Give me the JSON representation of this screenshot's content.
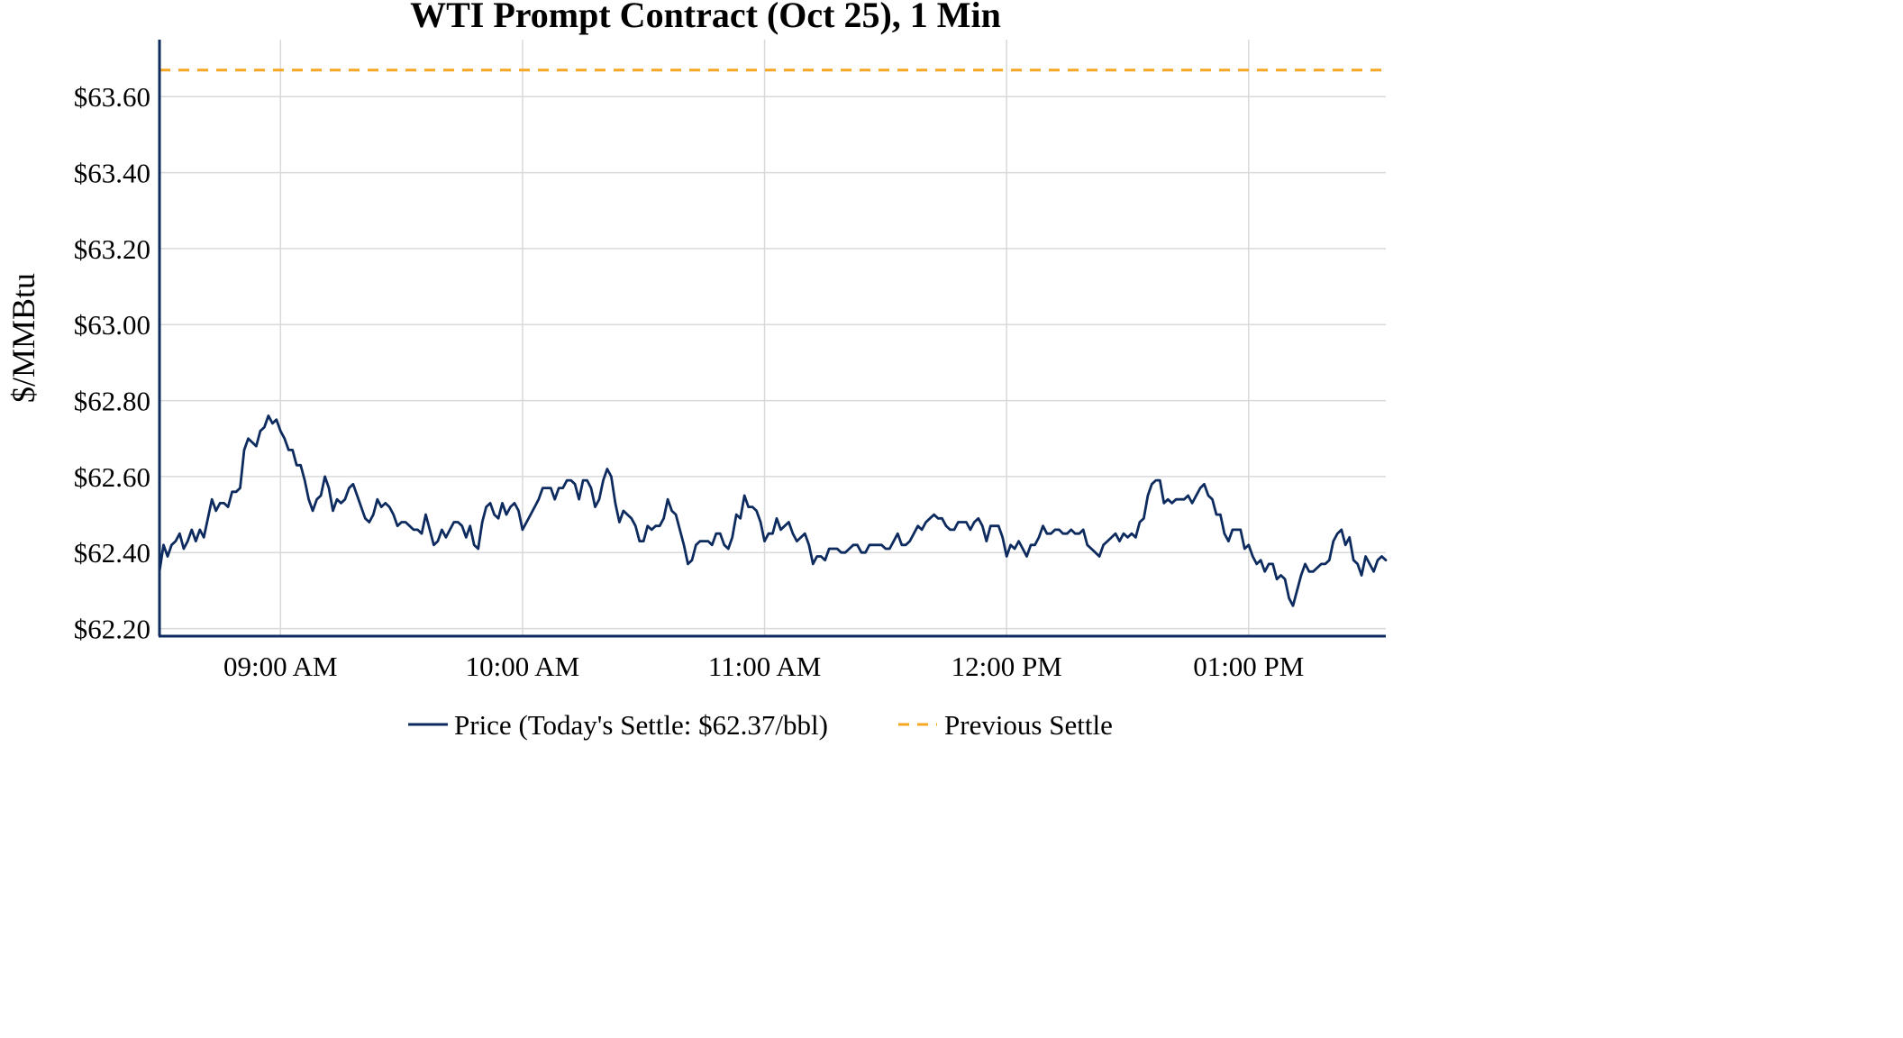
{
  "chart_data": {
    "type": "line",
    "title": "WTI Prompt Contract (Oct 25), 1 Min",
    "xlabel": "",
    "ylabel": "$/MMBtu",
    "x_start_minute": 510,
    "x_end_minute": 814,
    "xlim": [
      "08:30",
      "13:34"
    ],
    "ylim": [
      62.18,
      63.75
    ],
    "grid": true,
    "legend_position": "bottom-center",
    "y_ticks": [
      {
        "value": 62.2,
        "label": "$62.20"
      },
      {
        "value": 62.4,
        "label": "$62.40"
      },
      {
        "value": 62.6,
        "label": "$62.60"
      },
      {
        "value": 62.8,
        "label": "$62.80"
      },
      {
        "value": 63.0,
        "label": "$63.00"
      },
      {
        "value": 63.2,
        "label": "$63.20"
      },
      {
        "value": 63.4,
        "label": "$63.40"
      },
      {
        "value": 63.6,
        "label": "$63.60"
      }
    ],
    "x_ticks": [
      {
        "minute": 540,
        "label": "09:00 AM"
      },
      {
        "minute": 600,
        "label": "10:00 AM"
      },
      {
        "minute": 660,
        "label": "11:00 AM"
      },
      {
        "minute": 720,
        "label": "12:00 PM"
      },
      {
        "minute": 780,
        "label": "01:00 PM"
      }
    ],
    "series": [
      {
        "name": "Price (Today's Settle: $62.37/bbl)",
        "color": "#0d2b5e",
        "style": "solid",
        "sampling": "1 min",
        "values": [
          62.35,
          62.42,
          62.39,
          62.42,
          62.43,
          62.45,
          62.41,
          62.43,
          62.46,
          62.43,
          62.46,
          62.44,
          62.49,
          62.54,
          62.51,
          62.53,
          62.53,
          62.52,
          62.56,
          62.56,
          62.57,
          62.67,
          62.7,
          62.69,
          62.68,
          62.72,
          62.73,
          62.76,
          62.74,
          62.75,
          62.72,
          62.7,
          62.67,
          62.67,
          62.63,
          62.63,
          62.59,
          62.54,
          62.51,
          62.54,
          62.55,
          62.6,
          62.57,
          62.51,
          62.54,
          62.53,
          62.54,
          62.57,
          62.58,
          62.55,
          62.52,
          62.49,
          62.48,
          62.5,
          62.54,
          62.52,
          62.53,
          62.52,
          62.5,
          62.47,
          62.48,
          62.48,
          62.47,
          62.46,
          62.46,
          62.45,
          62.5,
          62.46,
          62.42,
          62.43,
          62.46,
          62.44,
          62.46,
          62.48,
          62.48,
          62.47,
          62.44,
          62.47,
          62.42,
          62.41,
          62.48,
          62.52,
          62.53,
          62.5,
          62.49,
          62.53,
          62.5,
          62.52,
          62.53,
          62.51,
          62.46,
          62.48,
          62.5,
          62.52,
          62.54,
          62.57,
          62.57,
          62.57,
          62.54,
          62.57,
          62.57,
          62.59,
          62.59,
          62.58,
          62.54,
          62.59,
          62.59,
          62.57,
          62.52,
          62.54,
          62.59,
          62.62,
          62.6,
          62.53,
          62.48,
          62.51,
          62.5,
          62.49,
          62.47,
          62.43,
          62.43,
          62.47,
          62.46,
          62.47,
          62.47,
          62.49,
          62.54,
          62.51,
          62.5,
          62.46,
          62.42,
          62.37,
          62.38,
          62.42,
          62.43,
          62.43,
          62.43,
          62.42,
          62.45,
          62.45,
          62.42,
          62.41,
          62.44,
          62.5,
          62.49,
          62.55,
          62.52,
          62.52,
          62.51,
          62.48,
          62.43,
          62.45,
          62.45,
          62.49,
          62.46,
          62.47,
          62.48,
          62.45,
          62.43,
          62.44,
          62.45,
          62.42,
          62.37,
          62.39,
          62.39,
          62.38,
          62.41,
          62.41,
          62.41,
          62.4,
          62.4,
          62.41,
          62.42,
          62.42,
          62.4,
          62.4,
          62.42,
          62.42,
          62.42,
          62.42,
          62.41,
          62.41,
          62.43,
          62.45,
          62.42,
          62.42,
          62.43,
          62.45,
          62.47,
          62.46,
          62.48,
          62.49,
          62.5,
          62.49,
          62.49,
          62.47,
          62.46,
          62.46,
          62.48,
          62.48,
          62.48,
          62.46,
          62.48,
          62.49,
          62.47,
          62.43,
          62.47,
          62.47,
          62.47,
          62.44,
          62.39,
          62.42,
          62.41,
          62.43,
          62.41,
          62.39,
          62.42,
          62.42,
          62.44,
          62.47,
          62.45,
          62.45,
          62.46,
          62.46,
          62.45,
          62.45,
          62.46,
          62.45,
          62.45,
          62.46,
          62.42,
          62.41,
          62.4,
          62.39,
          62.42,
          62.43,
          62.44,
          62.45,
          62.43,
          62.45,
          62.44,
          62.45,
          62.44,
          62.48,
          62.49,
          62.55,
          62.58,
          62.59,
          62.59,
          62.53,
          62.54,
          62.53,
          62.54,
          62.54,
          62.54,
          62.55,
          62.53,
          62.55,
          62.57,
          62.58,
          62.55,
          62.54,
          62.5,
          62.5,
          62.45,
          62.43,
          62.46,
          62.46,
          62.46,
          62.41,
          62.42,
          62.39,
          62.37,
          62.38,
          62.35,
          62.37,
          62.37,
          62.33,
          62.34,
          62.33,
          62.28,
          62.26,
          62.3,
          62.34,
          62.37,
          62.35,
          62.35,
          62.36,
          62.37,
          62.37,
          62.38,
          62.43,
          62.45,
          62.46,
          62.42,
          62.44,
          62.38,
          62.37,
          62.34,
          62.39,
          62.37,
          62.35,
          62.38,
          62.39,
          62.38
        ]
      },
      {
        "name": "Previous Settle",
        "color": "#f5a623",
        "style": "dashed",
        "value": 63.67
      }
    ]
  }
}
